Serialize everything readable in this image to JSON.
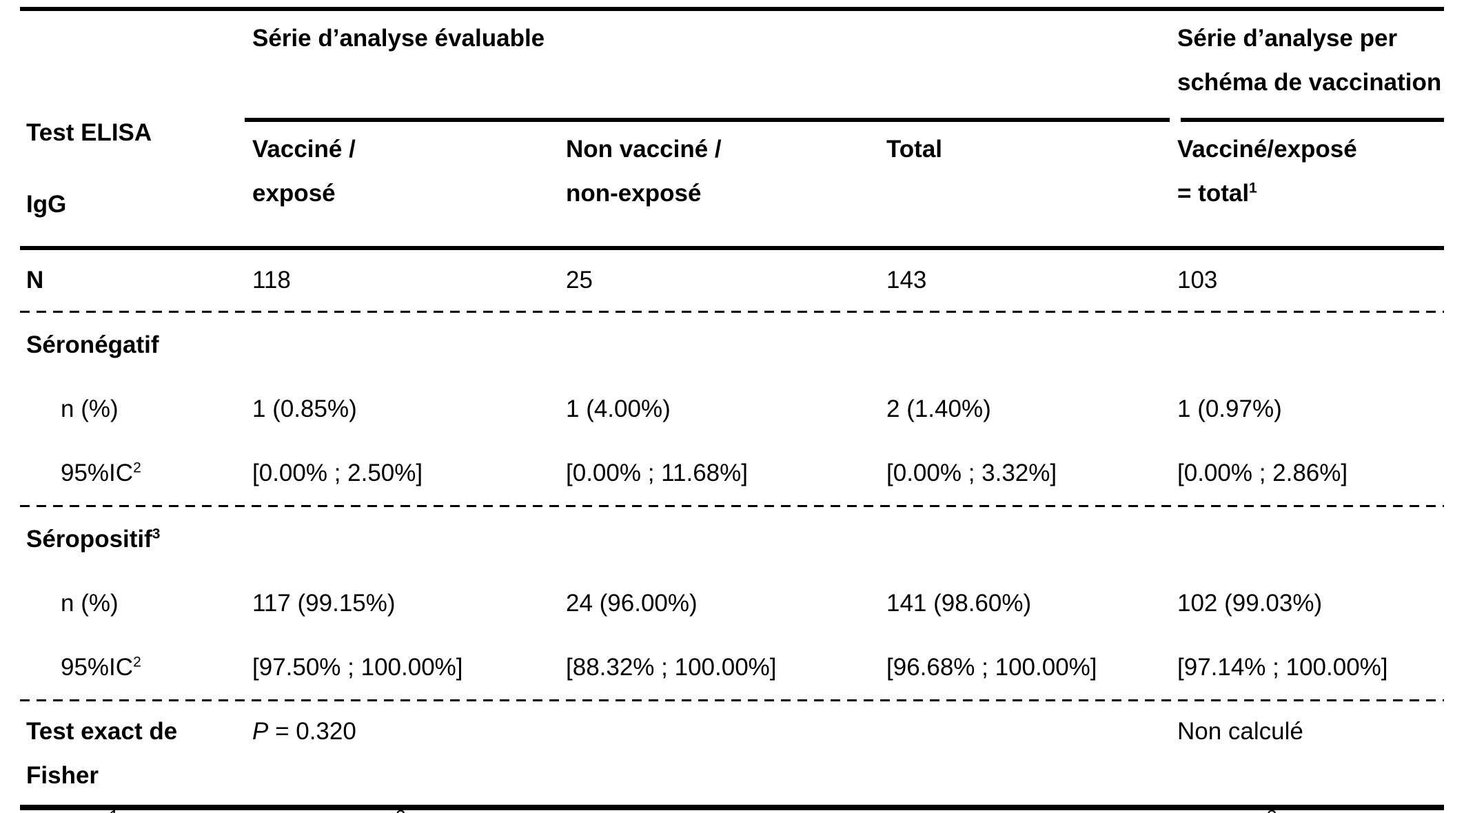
{
  "page": {
    "background_color": "#ffffff",
    "text_color": "#000000"
  },
  "table": {
    "group_headers": {
      "evaluable": "Série d’analyse évaluable",
      "per_schema_line1": "Série d’analyse per",
      "per_schema_line2": "schéma de vaccination"
    },
    "column_headers": {
      "row_label_line1": "Test ELISA",
      "row_label_line2": "IgG",
      "vaccine_line1": "Vacciné /",
      "vaccine_line2": "exposé",
      "non_vaccine_line1": "Non vacciné /",
      "non_vaccine_line2": "non-exposé",
      "total": "Total",
      "vaccine_total_line1": "Vacciné/exposé",
      "vaccine_total_line2_base": "= total",
      "vaccine_total_line2_sup": "1"
    },
    "rows": {
      "n": {
        "label": "N",
        "values": [
          "118",
          "25",
          "143",
          "103"
        ]
      },
      "seronegatif": {
        "label": "Séronégatif"
      },
      "seroneg_n": {
        "label": "n (%)",
        "values": [
          "1 (0.85%)",
          "1 (4.00%)",
          "2 (1.40%)",
          "1 (0.97%)"
        ]
      },
      "seroneg_ic": {
        "label_base": "95%IC",
        "label_sup": "2",
        "values": [
          "[0.00% ; 2.50%]",
          "[0.00% ; 11.68%]",
          "[0.00% ; 3.32%]",
          "[0.00% ; 2.86%]"
        ]
      },
      "seropositif": {
        "label_base": "Séropositif",
        "label_sup": "3"
      },
      "seropos_n": {
        "label": "n (%)",
        "values": [
          "117 (99.15%)",
          "24 (96.00%)",
          "141 (98.60%)",
          "102 (99.03%)"
        ]
      },
      "seropos_ic": {
        "label_base": "95%IC",
        "label_sup": "2",
        "values": [
          "[97.50% ; 100.00%]",
          "[88.32% ; 100.00%]",
          "[96.68% ; 100.00%]",
          "[97.14% ; 100.00%]"
        ]
      },
      "fisher": {
        "label": "Test exact de Fisher",
        "p_italic": "P",
        "p_rest": " = 0.320",
        "not_calculated": "Non calculé"
      }
    },
    "footnote_markers": [
      "1",
      "2",
      "3"
    ]
  }
}
